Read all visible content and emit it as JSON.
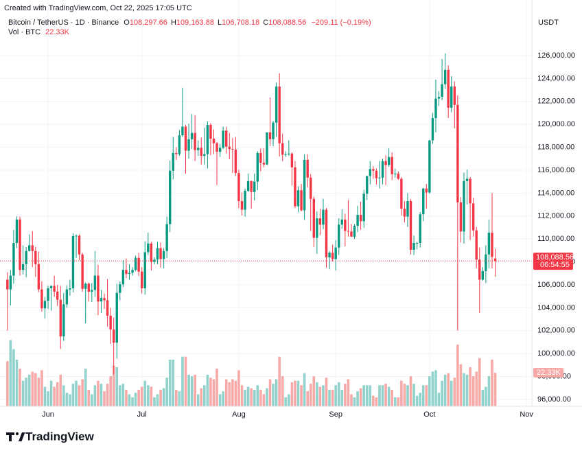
{
  "chart_data": {
    "type": "candlestick",
    "watermark": "Created with TradingView.com, Oct 22, 2025 17:05 UTC",
    "title": "Bitcoin / TetherUS · 1D · Binance",
    "legend_ohlc": [
      {
        "key": "O",
        "value": "108,297.66"
      },
      {
        "key": "H",
        "value": "109,163.88"
      },
      {
        "key": "L",
        "value": "106,708.18"
      },
      {
        "key": "C",
        "value": "108,088.56"
      }
    ],
    "legend_change": "−209.11 (−0.19%)",
    "volume_title": "Vol · BTC",
    "volume_last_label": "22.33K",
    "currency": "USDT",
    "countdown": "06:54:55",
    "brand": "TradingView",
    "up_color": "#089981",
    "down_color": "#f23645",
    "volume_up_color": "#92d2cc",
    "volume_down_color": "#f7a9a7",
    "grid": true,
    "ylim": [
      95400,
      129650
    ],
    "volume_lim": [
      0,
      60000
    ],
    "yticks": [
      {
        "value": 96000,
        "label": "96,000.00"
      },
      {
        "value": 98000,
        "label": "98,000.00"
      },
      {
        "value": 100000,
        "label": "100,000.00"
      },
      {
        "value": 102000,
        "label": "102,000.00"
      },
      {
        "value": 104000,
        "label": "104,000.00"
      },
      {
        "value": 106000,
        "label": "106,000.00"
      },
      {
        "value": 108000,
        "label": "108,000.00"
      },
      {
        "value": 110000,
        "label": "110,000.00"
      },
      {
        "value": 112000,
        "label": "112,000.00"
      },
      {
        "value": 114000,
        "label": "114,000.00"
      },
      {
        "value": 116000,
        "label": "116,000.00"
      },
      {
        "value": 118000,
        "label": "118,000.00"
      },
      {
        "value": 120000,
        "label": "120,000.00"
      },
      {
        "value": 122000,
        "label": "122,000.00"
      },
      {
        "value": 124000,
        "label": "124,000.00"
      },
      {
        "value": 126000,
        "label": "126,000.00"
      }
    ],
    "categories": [
      null,
      null,
      null,
      null,
      null,
      null,
      null,
      null,
      null,
      null,
      null,
      null,
      null,
      "Jun",
      null,
      null,
      null,
      null,
      null,
      null,
      null,
      null,
      null,
      null,
      null,
      null,
      null,
      null,
      null,
      null,
      null,
      null,
      null,
      null,
      null,
      null,
      null,
      null,
      null,
      null,
      null,
      null,
      null,
      "Jul",
      null,
      null,
      null,
      null,
      null,
      null,
      null,
      null,
      null,
      null,
      null,
      null,
      null,
      null,
      null,
      null,
      null,
      null,
      null,
      null,
      null,
      null,
      null,
      null,
      null,
      null,
      null,
      null,
      null,
      null,
      "Aug",
      null,
      null,
      null,
      null,
      null,
      null,
      null,
      null,
      null,
      null,
      null,
      null,
      null,
      null,
      null,
      null,
      null,
      null,
      null,
      null,
      null,
      null,
      null,
      null,
      null,
      null,
      null,
      null,
      null,
      null,
      "Sep",
      null,
      null,
      null,
      null,
      null,
      null,
      null,
      null,
      null,
      null,
      null,
      null,
      null,
      null,
      null,
      null,
      null,
      null,
      null,
      null,
      null,
      null,
      null,
      null,
      null,
      null,
      null,
      null,
      null,
      "Oct",
      null,
      null,
      null,
      null,
      null,
      null,
      null,
      null,
      null,
      null,
      null,
      null,
      null,
      null,
      null,
      null,
      null,
      null,
      null,
      null,
      null,
      null,
      null,
      null,
      null,
      null,
      null,
      null,
      null,
      null,
      "Nov"
    ],
    "open": [
      106450,
      105600,
      106800,
      109650,
      111700,
      107300,
      107800,
      108950,
      109450,
      108950,
      107800,
      105600,
      103950,
      104600,
      105700,
      105900,
      105400,
      104700,
      101500,
      104300,
      105600,
      105700,
      110250,
      110280,
      108650,
      105650,
      106100,
      105400,
      105550,
      106800,
      104550,
      104850,
      104650,
      103300,
      102100,
      100950,
      105300,
      106050,
      107300,
      106950,
      107050,
      107300,
      108350,
      107150,
      105700,
      108850,
      109600,
      108000,
      108200,
      109200,
      108250,
      108950,
      111300,
      115950,
      117500,
      117400,
      119050,
      119800,
      117700,
      118700,
      119250,
      117750,
      117950,
      117250,
      117400,
      119950,
      118750,
      118350,
      117600,
      117950,
      119450,
      118050,
      117850,
      117800,
      115750,
      113300,
      112550,
      114200,
      115050,
      114100,
      115000,
      117500,
      116650,
      116500,
      119300,
      118700,
      120150,
      123300,
      118350,
      117350,
      117400,
      117450,
      116250,
      112850,
      114250,
      112500,
      116900,
      115350,
      113500,
      110100,
      111800,
      111250,
      112550,
      108400,
      108800,
      108250,
      109250,
      111250,
      111700,
      110700,
      110650,
      110200,
      111150,
      112100,
      111550,
      113950,
      115500,
      116100,
      115950,
      115300,
      115350,
      116800,
      116450,
      117150,
      115650,
      115700,
      115250,
      112650,
      111950,
      113300,
      109050,
      109650,
      109650,
      112150,
      114400,
      114050,
      118600,
      120550,
      122250,
      122400,
      123500,
      124750,
      121450,
      123300,
      121700,
      113200,
      110650,
      115050,
      115250,
      113100,
      110750,
      108200,
      106450,
      107200,
      108650,
      110550,
      108297.66,
      null,
      null,
      null,
      null,
      null,
      null,
      null,
      null,
      null,
      null
    ],
    "high": [
      107100,
      107300,
      110800,
      111980,
      111950,
      109450,
      109300,
      110400,
      110700,
      109300,
      108900,
      106300,
      104950,
      105900,
      105950,
      106800,
      106000,
      105900,
      105300,
      105950,
      106450,
      110500,
      110400,
      110400,
      108800,
      106200,
      106200,
      106150,
      108950,
      107750,
      105550,
      105250,
      106500,
      104000,
      103150,
      106100,
      106300,
      108150,
      108300,
      107800,
      107550,
      108550,
      108800,
      107550,
      109800,
      110550,
      109750,
      108400,
      109750,
      109700,
      109200,
      111950,
      116850,
      118900,
      118000,
      119500,
      123200,
      119950,
      120050,
      120900,
      120800,
      118600,
      118850,
      119700,
      120250,
      120100,
      119550,
      118450,
      118300,
      119800,
      119800,
      119250,
      118800,
      118900,
      116050,
      114050,
      114400,
      115700,
      115100,
      115700,
      117650,
      117900,
      117900,
      119300,
      122350,
      120300,
      123650,
      124450,
      119200,
      117650,
      118600,
      117550,
      116800,
      114600,
      114800,
      117400,
      117400,
      115650,
      113700,
      112400,
      112650,
      113500,
      112700,
      108950,
      109500,
      109900,
      111800,
      112600,
      112200,
      113400,
      111300,
      111300,
      112900,
      113250,
      114300,
      115500,
      116800,
      116350,
      116150,
      116800,
      117000,
      117300,
      117900,
      117550,
      116150,
      115900,
      115400,
      113300,
      114000,
      113500,
      110300,
      109750,
      112350,
      114450,
      114800,
      118650,
      121000,
      123900,
      122900,
      125700,
      126200,
      125150,
      124200,
      123750,
      122550,
      113650,
      115800,
      116050,
      115400,
      113600,
      111050,
      109250,
      107550,
      109450,
      111700,
      114000,
      109163.88,
      null,
      null,
      null,
      null,
      null,
      null,
      null,
      null,
      null,
      null
    ],
    "low": [
      102000,
      104200,
      106100,
      109200,
      106800,
      106900,
      106650,
      108900,
      107550,
      106700,
      105350,
      103650,
      103050,
      103900,
      103750,
      104950,
      104150,
      100400,
      101100,
      104000,
      105050,
      105350,
      108350,
      108150,
      105400,
      102650,
      104550,
      104500,
      104950,
      103350,
      103550,
      103900,
      102350,
      100850,
      98200,
      99550,
      104650,
      105800,
      106600,
      106450,
      106800,
      107200,
      106750,
      105250,
      105150,
      108600,
      107250,
      107800,
      107800,
      107500,
      107450,
      108350,
      110600,
      115200,
      116900,
      117250,
      118900,
      115700,
      117000,
      117850,
      116800,
      117250,
      116500,
      116500,
      116150,
      117300,
      117400,
      114700,
      117150,
      117850,
      117450,
      116950,
      115750,
      115500,
      112700,
      112050,
      111950,
      114100,
      112650,
      113350,
      114250,
      115900,
      116250,
      116450,
      118100,
      118100,
      118900,
      117200,
      116800,
      117150,
      117250,
      114650,
      112700,
      112350,
      112400,
      111650,
      114500,
      110700,
      109300,
      108700,
      110350,
      110850,
      107500,
      107350,
      108050,
      107250,
      108600,
      110900,
      109350,
      110200,
      110200,
      110000,
      110600,
      110800,
      110950,
      113400,
      114750,
      115250,
      114750,
      114400,
      114750,
      114700,
      116300,
      115150,
      115350,
      115150,
      112050,
      111450,
      111050,
      108650,
      108600,
      109100,
      109250,
      111550,
      112650,
      113950,
      118300,
      119300,
      121600,
      122100,
      123100,
      120550,
      121050,
      119650,
      102000,
      109700,
      109600,
      113000,
      109900,
      110200,
      107450,
      103550,
      106350,
      106150,
      107450,
      107450,
      106708.18,
      null,
      null,
      null,
      null,
      null,
      null,
      null,
      null,
      null,
      null
    ],
    "close": [
      105600,
      106800,
      109650,
      111700,
      107300,
      107800,
      108950,
      109450,
      108950,
      107800,
      105600,
      103950,
      104600,
      105700,
      105900,
      105400,
      104700,
      101500,
      104300,
      105600,
      105700,
      110250,
      110280,
      108650,
      105650,
      106100,
      105400,
      105550,
      106800,
      104550,
      104850,
      104650,
      103300,
      102100,
      100950,
      105300,
      106050,
      107300,
      106950,
      107050,
      107300,
      108350,
      107150,
      105700,
      108850,
      109600,
      108000,
      108200,
      109200,
      108250,
      108950,
      111300,
      115950,
      117500,
      117400,
      119050,
      119800,
      117700,
      118700,
      119250,
      117750,
      117950,
      117250,
      117400,
      119950,
      118750,
      118350,
      117600,
      117950,
      119450,
      118050,
      117850,
      117800,
      115750,
      113300,
      112550,
      114200,
      115050,
      114100,
      115000,
      117500,
      116650,
      116500,
      119300,
      118700,
      120150,
      123300,
      118350,
      117350,
      117400,
      117450,
      116250,
      112850,
      114250,
      112500,
      116900,
      115350,
      113500,
      110100,
      111800,
      111250,
      112550,
      108400,
      108800,
      108250,
      109250,
      111250,
      111700,
      110700,
      110650,
      110200,
      111150,
      112100,
      111550,
      113950,
      115500,
      116100,
      115950,
      115300,
      115350,
      116800,
      116450,
      117150,
      115650,
      115700,
      115250,
      112650,
      111950,
      113300,
      109050,
      109650,
      109650,
      112150,
      114400,
      114050,
      118600,
      120550,
      122250,
      122400,
      123500,
      124750,
      121450,
      123300,
      121700,
      113200,
      110650,
      115050,
      115250,
      113100,
      110750,
      108200,
      106450,
      107200,
      108650,
      110550,
      108450,
      108088.56,
      null,
      null,
      null,
      null,
      null,
      null,
      null,
      null,
      null,
      null
    ],
    "volume": [
      30000,
      44000,
      38000,
      31000,
      25000,
      17000,
      19000,
      21000,
      23000,
      22000,
      19000,
      24000,
      13000,
      10000,
      17000,
      13000,
      16000,
      21000,
      14000,
      9000,
      8000,
      15000,
      17000,
      14000,
      18000,
      25000,
      11000,
      8000,
      14000,
      17000,
      15000,
      10000,
      15000,
      20000,
      27000,
      26000,
      14000,
      15000,
      11000,
      8000,
      6000,
      9000,
      11000,
      13000,
      17000,
      14000,
      13000,
      6000,
      8000,
      11000,
      12000,
      19000,
      31000,
      31000,
      11000,
      10000,
      33000,
      33000,
      21000,
      20000,
      21000,
      8000,
      12000,
      14000,
      21000,
      19000,
      18000,
      25000,
      8000,
      10000,
      18000,
      16000,
      18000,
      17000,
      24000,
      14000,
      11000,
      13000,
      12000,
      11000,
      14000,
      11000,
      8000,
      12000,
      18000,
      15000,
      18000,
      33000,
      20000,
      6000,
      8000,
      16000,
      17000,
      17000,
      14000,
      22000,
      10000,
      15000,
      20000,
      16000,
      13000,
      14000,
      19000,
      11000,
      11000,
      14000,
      16000,
      11000,
      15000,
      18000,
      8000,
      6000,
      10000,
      12000,
      14000,
      14000,
      14000,
      7000,
      6000,
      14000,
      14000,
      15000,
      13000,
      11000,
      6000,
      6000,
      17000,
      15000,
      14000,
      20000,
      15000,
      7000,
      9000,
      14000,
      14000,
      20000,
      23000,
      24000,
      9000,
      17000,
      21000,
      22000,
      17000,
      19000,
      41000,
      28000,
      22000,
      21000,
      26000,
      20000,
      23000,
      32000,
      11000,
      13000,
      20000,
      31000,
      22330,
      null,
      null,
      null,
      null,
      null,
      null,
      null,
      null,
      null,
      null
    ]
  }
}
